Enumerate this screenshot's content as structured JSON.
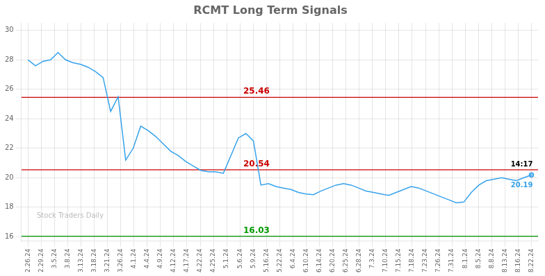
{
  "chart_data": {
    "type": "line",
    "title": "RCMT Long Term Signals",
    "x": [
      0,
      0.567164,
      1.134328,
      1.701493,
      2.268657,
      2.835821,
      3.402985,
      3.970149,
      4.537313,
      5.104478,
      5.671642,
      6.238806,
      6.80597,
      7.373134,
      7.940299,
      8.507463,
      9.074627,
      9.641791,
      10.208955,
      10.776119,
      11.343284,
      11.910448,
      12.477612,
      13.044776,
      13.61194,
      14.179104,
      14.746269,
      15.313433,
      15.880597,
      16.447761,
      17.014925,
      17.58209,
      18.149254,
      18.716418,
      19.283582,
      19.850746,
      20.41791,
      20.985075,
      21.552239,
      22.119403,
      22.686567,
      23.253731,
      23.820896,
      24.38806,
      24.955224,
      25.522388,
      26.089552,
      26.656716,
      27.223881,
      27.791045,
      28.358209,
      28.925373,
      29.492537,
      30.059701,
      30.626866,
      31.19403,
      31.761194,
      32.328358,
      32.895522,
      33.462687,
      34.029851,
      34.597015,
      35.164179,
      35.731343,
      36.298507,
      36.865672,
      37.432836,
      38
    ],
    "values": [
      28.0,
      27.6,
      27.9,
      28.0,
      28.5,
      28.0,
      27.8,
      27.7,
      27.5,
      27.2,
      26.8,
      24.5,
      25.5,
      21.2,
      22.0,
      23.5,
      23.2,
      22.8,
      22.3,
      21.8,
      21.5,
      21.1,
      20.8,
      20.5,
      20.4,
      20.4,
      20.3,
      21.5,
      22.7,
      23.0,
      22.5,
      19.5,
      19.6,
      19.4,
      19.3,
      19.2,
      19.0,
      18.9,
      18.85,
      19.1,
      19.3,
      19.5,
      19.6,
      19.5,
      19.3,
      19.1,
      19.0,
      18.9,
      18.8,
      19.0,
      19.2,
      19.4,
      19.3,
      19.1,
      18.9,
      18.7,
      18.5,
      18.3,
      18.35,
      19.0,
      19.5,
      19.8,
      19.9,
      20.0,
      19.9,
      19.8,
      20.0,
      20.19
    ],
    "xlim": [
      -0.5,
      38.5
    ],
    "xticks": [
      {
        "value": 0,
        "label": "2.26.24"
      },
      {
        "value": 1,
        "label": "2.29.24"
      },
      {
        "value": 2,
        "label": "3.5.24"
      },
      {
        "value": 3,
        "label": "3.8.24"
      },
      {
        "value": 4,
        "label": "3.13.24"
      },
      {
        "value": 5,
        "label": "3.18.24"
      },
      {
        "value": 6,
        "label": "3.21.24"
      },
      {
        "value": 7,
        "label": "3.26.24"
      },
      {
        "value": 8,
        "label": "4.1.24"
      },
      {
        "value": 9,
        "label": "4.4.24"
      },
      {
        "value": 10,
        "label": "4.9.24"
      },
      {
        "value": 11,
        "label": "4.12.24"
      },
      {
        "value": 12,
        "label": "4.17.24"
      },
      {
        "value": 13,
        "label": "4.22.24"
      },
      {
        "value": 14,
        "label": "4.25.24"
      },
      {
        "value": 15,
        "label": "5.1.24"
      },
      {
        "value": 16,
        "label": "5.6.24"
      },
      {
        "value": 17,
        "label": "5.9.24"
      },
      {
        "value": 18,
        "label": "5.16.24"
      },
      {
        "value": 19,
        "label": "5.22.24"
      },
      {
        "value": 20,
        "label": "6.4.24"
      },
      {
        "value": 21,
        "label": "6.10.24"
      },
      {
        "value": 22,
        "label": "6.14.24"
      },
      {
        "value": 23,
        "label": "6.20.24"
      },
      {
        "value": 24,
        "label": "6.25.24"
      },
      {
        "value": 25,
        "label": "6.28.24"
      },
      {
        "value": 26,
        "label": "7.3.24"
      },
      {
        "value": 27,
        "label": "7.10.24"
      },
      {
        "value": 28,
        "label": "7.15.24"
      },
      {
        "value": 29,
        "label": "7.18.24"
      },
      {
        "value": 30,
        "label": "7.23.24"
      },
      {
        "value": 31,
        "label": "7.26.24"
      },
      {
        "value": 32,
        "label": "7.31.24"
      },
      {
        "value": 33,
        "label": "8.1.24"
      },
      {
        "value": 34,
        "label": "8.5.24"
      },
      {
        "value": 35,
        "label": "8.8.24"
      },
      {
        "value": 36,
        "label": "8.13.24"
      },
      {
        "value": 37,
        "label": "8.16.24"
      },
      {
        "value": 38,
        "label": "8.22.24"
      }
    ],
    "ylim": [
      15.7,
      30.5
    ],
    "yticks": [
      16,
      18,
      20,
      22,
      24,
      26,
      28,
      30
    ],
    "grid": true,
    "annotations": [
      {
        "text": "25.46",
        "y": 25.46,
        "color": "#cc0000"
      },
      {
        "text": "20.54",
        "y": 20.54,
        "color": "#cc0000"
      },
      {
        "text": "16.03",
        "y": 16.03,
        "color": "#009900"
      }
    ],
    "last_point_labels": [
      "14:17",
      "20.19"
    ],
    "watermark": "Stock Traders Daily"
  }
}
